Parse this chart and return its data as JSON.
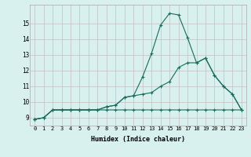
{
  "xlabel": "Humidex (Indice chaleur)",
  "x_values": [
    0,
    1,
    2,
    3,
    4,
    5,
    6,
    7,
    8,
    9,
    10,
    11,
    12,
    13,
    14,
    15,
    16,
    17,
    18,
    19,
    20,
    21,
    22,
    23
  ],
  "line1_y": [
    8.9,
    9.0,
    9.5,
    9.5,
    9.5,
    9.5,
    9.5,
    9.5,
    9.7,
    9.8,
    10.3,
    10.4,
    11.6,
    13.1,
    14.9,
    15.65,
    15.55,
    14.1,
    12.5,
    12.8,
    11.7,
    11.0,
    10.5,
    9.5
  ],
  "line2_y": [
    8.9,
    9.0,
    9.5,
    9.5,
    9.5,
    9.5,
    9.5,
    9.5,
    9.7,
    9.8,
    10.3,
    10.4,
    10.5,
    10.6,
    11.0,
    11.3,
    12.2,
    12.5,
    12.5,
    12.8,
    11.7,
    11.0,
    10.5,
    9.5
  ],
  "line3_y": [
    8.9,
    9.0,
    9.5,
    9.5,
    9.5,
    9.5,
    9.5,
    9.5,
    9.5,
    9.5,
    9.5,
    9.5,
    9.5,
    9.5,
    9.5,
    9.5,
    9.5,
    9.5,
    9.5,
    9.5,
    9.5,
    9.5,
    9.5,
    9.5
  ],
  "line_color": "#1a6b5a",
  "bg_color": "#d8f0ee",
  "grid_color": "#c0c0c0",
  "ylim": [
    8.5,
    16.2
  ],
  "yticks": [
    9,
    10,
    11,
    12,
    13,
    14,
    15
  ],
  "xlim": [
    -0.5,
    23.5
  ]
}
